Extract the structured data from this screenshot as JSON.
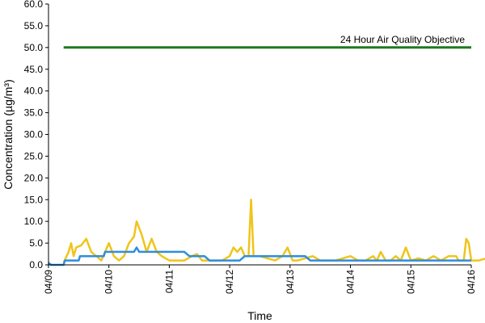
{
  "chart_data": {
    "type": "line",
    "title": "",
    "xlabel": "Time",
    "ylabel": "Concentration (µg/m³)",
    "ylim": [
      0,
      60
    ],
    "yticks": [
      "0.0",
      "5.0",
      "10.0",
      "15.0",
      "20.0",
      "25.0",
      "30.0",
      "35.0",
      "40.0",
      "45.0",
      "50.0",
      "55.0",
      "60.0"
    ],
    "xlim": [
      "04/09",
      "04/16"
    ],
    "xticks": [
      "04/09",
      "04/10",
      "04/11",
      "04/12",
      "04/13",
      "04/14",
      "04/15",
      "04/16"
    ],
    "grid": false,
    "legend": "none",
    "annotations": [
      {
        "text": "24 Hour Air Quality Objective",
        "y": 50
      }
    ],
    "series": [
      {
        "color": "#1f7a1f",
        "role": "objective-line",
        "points": [
          [
            "04/09 06:00",
            50
          ],
          [
            "04/16 00:00",
            50
          ]
        ]
      },
      {
        "color": "#f0c419",
        "points": [
          [
            "04/09 06:00",
            0.5
          ],
          [
            "04/09 08:00",
            3
          ],
          [
            "04/09 09:00",
            5
          ],
          [
            "04/09 10:00",
            2
          ],
          [
            "04/09 11:00",
            4
          ],
          [
            "04/09 13:00",
            4.5
          ],
          [
            "04/09 15:00",
            6
          ],
          [
            "04/09 17:00",
            3
          ],
          [
            "04/09 19:00",
            2
          ],
          [
            "04/09 21:00",
            1
          ],
          [
            "04/10 00:00",
            5
          ],
          [
            "04/10 02:00",
            2
          ],
          [
            "04/10 04:00",
            1
          ],
          [
            "04/10 06:00",
            2
          ],
          [
            "04/10 08:00",
            5
          ],
          [
            "04/10 10:00",
            6.5
          ],
          [
            "04/10 11:00",
            10
          ],
          [
            "04/10 13:00",
            7
          ],
          [
            "04/10 15:00",
            3
          ],
          [
            "04/10 17:00",
            6
          ],
          [
            "04/10 19:00",
            3
          ],
          [
            "04/10 21:00",
            2
          ],
          [
            "04/11 00:00",
            1
          ],
          [
            "04/11 03:00",
            1
          ],
          [
            "04/11 06:00",
            1
          ],
          [
            "04/11 09:00",
            2
          ],
          [
            "04/11 11:00",
            2.5
          ],
          [
            "04/11 13:00",
            1
          ],
          [
            "04/11 15:00",
            1
          ],
          [
            "04/11 18:00",
            1
          ],
          [
            "04/11 21:00",
            1
          ],
          [
            "04/12 00:00",
            2
          ],
          [
            "04/12 01:30",
            4
          ],
          [
            "04/12 03:00",
            3
          ],
          [
            "04/12 04:30",
            4
          ],
          [
            "04/12 06:00",
            2
          ],
          [
            "04/12 07:30",
            2
          ],
          [
            "04/12 08:30",
            15
          ],
          [
            "04/12 09:30",
            2
          ],
          [
            "04/12 12:00",
            2
          ],
          [
            "04/12 15:00",
            1.5
          ],
          [
            "04/12 18:00",
            1
          ],
          [
            "04/12 21:00",
            2
          ],
          [
            "04/12 23:00",
            4
          ],
          [
            "04/13 01:00",
            1
          ],
          [
            "04/13 03:00",
            1
          ],
          [
            "04/13 06:00",
            1.5
          ],
          [
            "04/13 09:00",
            2
          ],
          [
            "04/13 12:00",
            1
          ],
          [
            "04/13 15:00",
            1
          ],
          [
            "04/13 18:00",
            1
          ],
          [
            "04/13 21:00",
            1.5
          ],
          [
            "04/14 00:00",
            2
          ],
          [
            "04/14 03:00",
            1
          ],
          [
            "04/14 06:00",
            1
          ],
          [
            "04/14 09:00",
            2
          ],
          [
            "04/14 10:30",
            1
          ],
          [
            "04/14 12:00",
            3
          ],
          [
            "04/14 14:00",
            1
          ],
          [
            "04/14 16:00",
            1
          ],
          [
            "04/14 18:00",
            2
          ],
          [
            "04/14 20:00",
            1
          ],
          [
            "04/14 22:00",
            4
          ],
          [
            "04/15 00:00",
            1
          ],
          [
            "04/15 03:00",
            1.5
          ],
          [
            "04/15 06:00",
            1
          ],
          [
            "04/15 09:00",
            2
          ],
          [
            "04/15 12:00",
            1
          ],
          [
            "04/15 15:00",
            2
          ],
          [
            "04/15 18:00",
            2
          ],
          [
            "04/15 19:00",
            1
          ],
          [
            "04/15 21:00",
            1
          ],
          [
            "04/15 22:00",
            6
          ],
          [
            "04/15 23:00",
            5
          ],
          [
            "04/16 00:00",
            1
          ],
          [
            "04/16 03:00",
            1
          ],
          [
            "04/16 06:00",
            1.5
          ],
          [
            "04/16 09:00",
            2
          ]
        ]
      },
      {
        "color": "#2e8ede",
        "points": [
          [
            "04/09 00:00",
            0.5
          ],
          [
            "04/09 01:00",
            0
          ],
          [
            "04/09 06:00",
            0
          ],
          [
            "04/09 06:30",
            1
          ],
          [
            "04/09 10:00",
            1
          ],
          [
            "04/09 12:00",
            1
          ],
          [
            "04/09 12:30",
            2
          ],
          [
            "04/09 18:00",
            2
          ],
          [
            "04/09 22:00",
            2
          ],
          [
            "04/09 22:30",
            3
          ],
          [
            "04/10 10:00",
            3
          ],
          [
            "04/10 11:00",
            4
          ],
          [
            "04/10 12:00",
            3
          ],
          [
            "04/10 18:00",
            3
          ],
          [
            "04/11 06:00",
            3
          ],
          [
            "04/11 08:00",
            2
          ],
          [
            "04/11 14:00",
            2
          ],
          [
            "04/11 16:00",
            1
          ],
          [
            "04/11 22:00",
            1
          ],
          [
            "04/12 04:00",
            1
          ],
          [
            "04/12 06:00",
            2
          ],
          [
            "04/12 12:00",
            2
          ],
          [
            "04/13 06:00",
            2
          ],
          [
            "04/13 08:00",
            1
          ],
          [
            "04/14 00:00",
            1
          ],
          [
            "04/15 00:00",
            1
          ],
          [
            "04/16 00:00",
            1
          ]
        ]
      }
    ]
  }
}
